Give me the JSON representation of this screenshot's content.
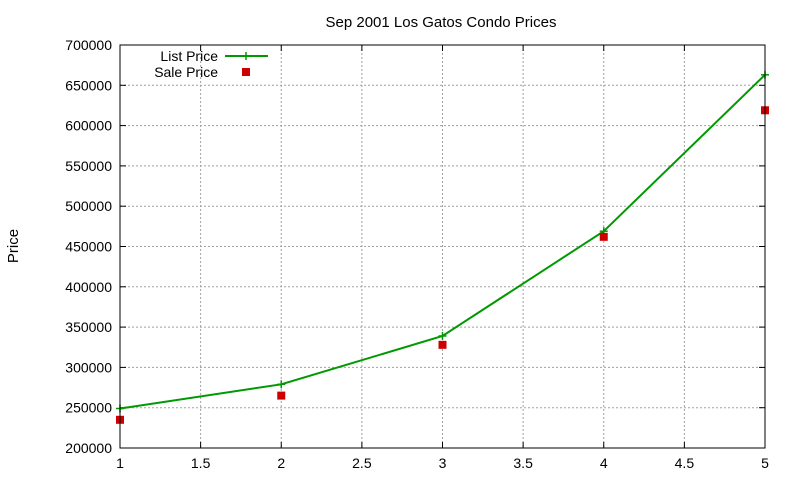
{
  "chart_data": {
    "type": "line",
    "title": "Sep 2001 Los Gatos Condo Prices",
    "xlabel": "",
    "ylabel": "Price",
    "xlim": [
      1,
      5
    ],
    "ylim": [
      200000,
      700000
    ],
    "x_ticks": [
      "1",
      "1.5",
      "2",
      "2.5",
      "3",
      "3.5",
      "4",
      "4.5",
      "5"
    ],
    "y_ticks": [
      "200000",
      "250000",
      "300000",
      "350000",
      "400000",
      "450000",
      "500000",
      "550000",
      "600000",
      "650000",
      "700000"
    ],
    "grid": true,
    "legend_position": "top-left",
    "x": [
      1,
      2,
      3,
      4,
      5
    ],
    "series": [
      {
        "name": "List Price",
        "style": "line+cross",
        "color": "#009900",
        "values": [
          249000,
          279000,
          339000,
          469000,
          663000
        ]
      },
      {
        "name": "Sale Price",
        "style": "square",
        "color": "#cc0000",
        "values": [
          235000,
          265000,
          328000,
          462000,
          619000
        ]
      }
    ]
  }
}
